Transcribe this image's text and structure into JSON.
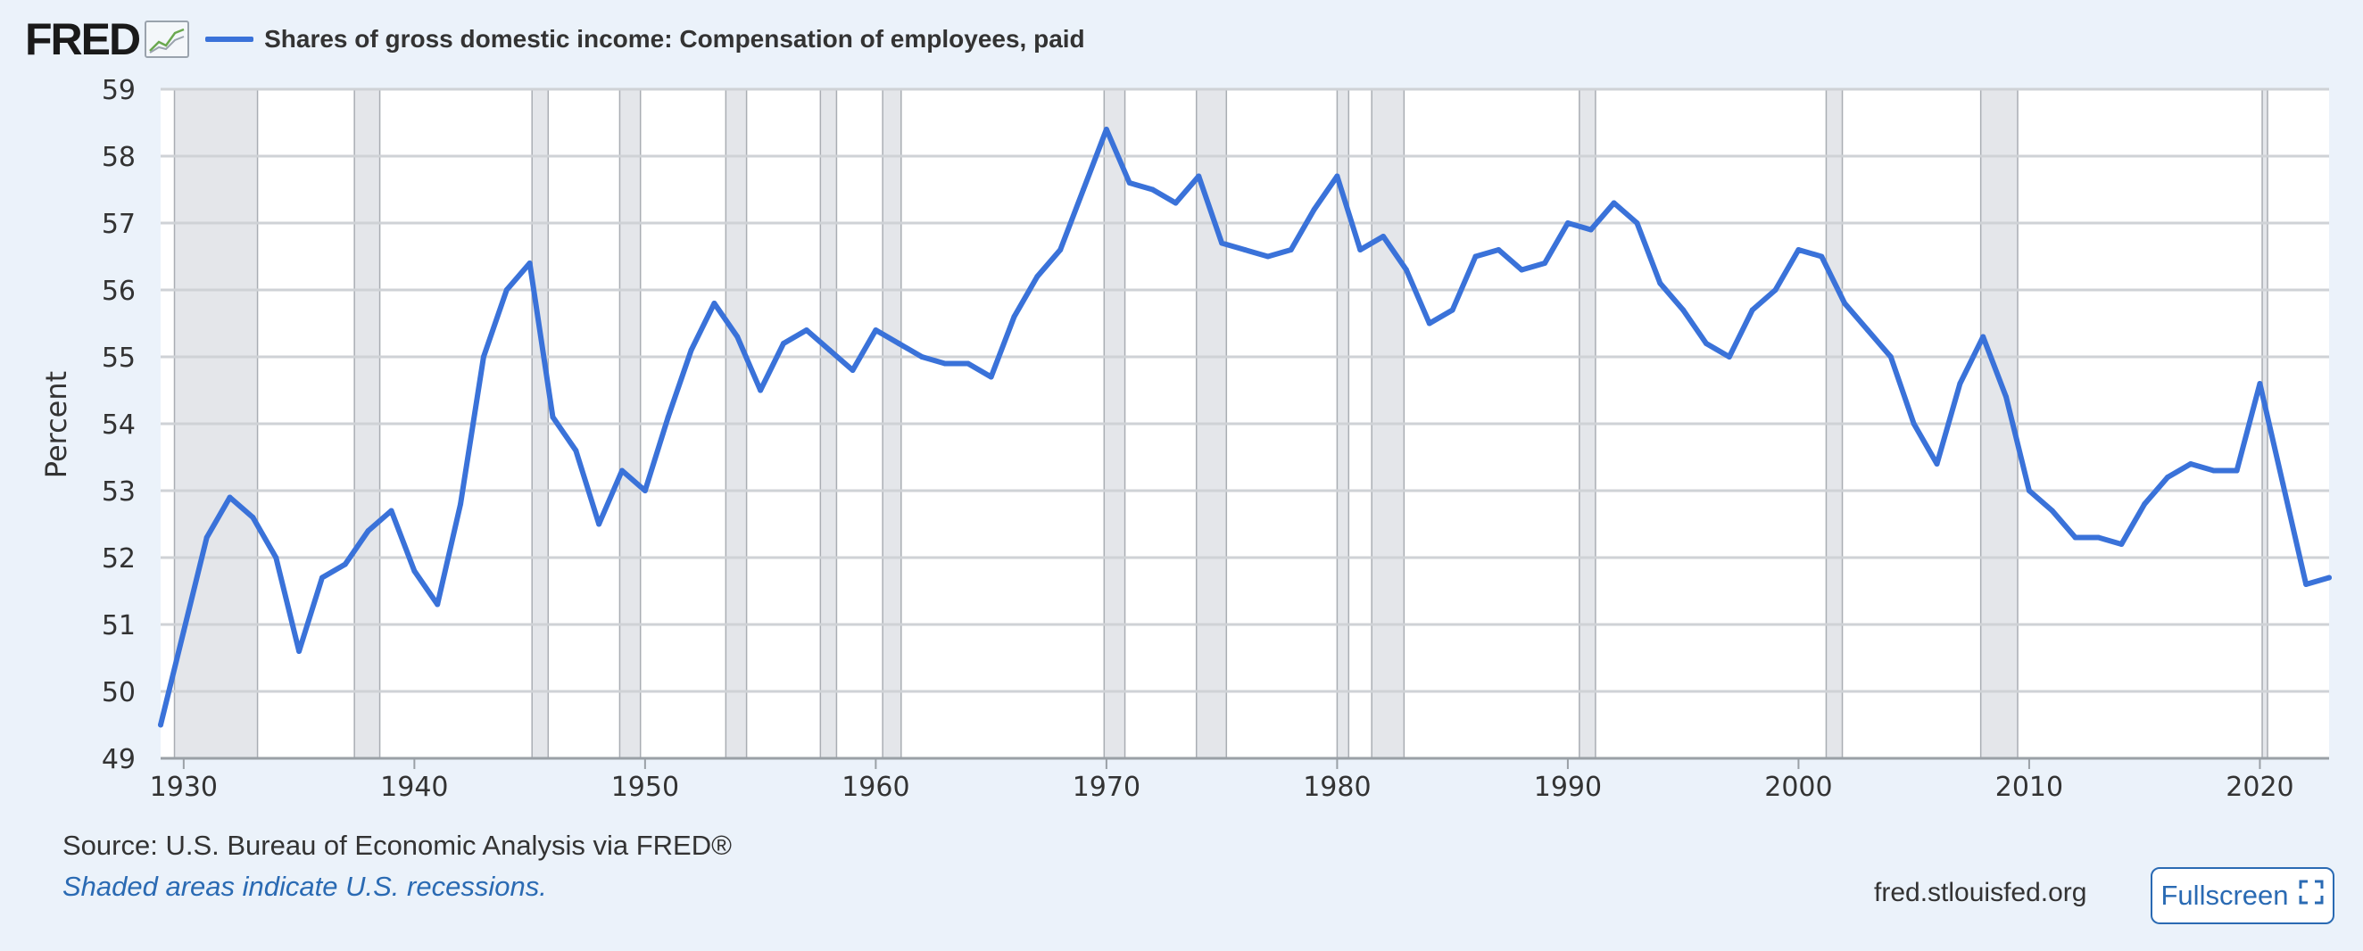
{
  "header": {
    "logo": "FRED",
    "series_title": "Shares of gross domestic income: Compensation of employees, paid"
  },
  "footer": {
    "source": "Source: U.S. Bureau of Economic Analysis via FRED®",
    "note": "Shaded areas indicate U.S. recessions.",
    "site": "fred.stlouisfed.org",
    "fullscreen_label": "Fullscreen",
    "fullscreen_icon": "expand-icon"
  },
  "colors": {
    "line": "#3a72d9",
    "recession_fill": "#e4e6ea",
    "gridline": "#cfd2d6",
    "background": "#ebf2fa"
  },
  "chart_data": {
    "type": "line",
    "title": "Shares of gross domestic income: Compensation of employees, paid",
    "ylabel": "Percent",
    "xlabel": "",
    "xlim": [
      1929,
      2023
    ],
    "ylim": [
      49,
      59
    ],
    "yticks": [
      49,
      50,
      51,
      52,
      53,
      54,
      55,
      56,
      57,
      58,
      59
    ],
    "xticks": [
      1930,
      1940,
      1950,
      1960,
      1970,
      1980,
      1990,
      2000,
      2010,
      2020
    ],
    "grid": true,
    "recessions": [
      [
        1929.6,
        1933.2
      ],
      [
        1937.4,
        1938.5
      ],
      [
        1945.1,
        1945.8
      ],
      [
        1948.9,
        1949.8
      ],
      [
        1953.5,
        1954.4
      ],
      [
        1957.6,
        1958.3
      ],
      [
        1960.3,
        1961.1
      ],
      [
        1969.9,
        1970.8
      ],
      [
        1973.9,
        1975.2
      ],
      [
        1980.0,
        1980.5
      ],
      [
        1981.5,
        1982.9
      ],
      [
        1990.5,
        1991.2
      ],
      [
        2001.2,
        2001.9
      ],
      [
        2007.9,
        2009.5
      ],
      [
        2020.1,
        2020.3
      ]
    ],
    "x": [
      1929,
      1930,
      1931,
      1932,
      1933,
      1934,
      1935,
      1936,
      1937,
      1938,
      1939,
      1940,
      1941,
      1942,
      1943,
      1944,
      1945,
      1946,
      1947,
      1948,
      1949,
      1950,
      1951,
      1952,
      1953,
      1954,
      1955,
      1956,
      1957,
      1958,
      1959,
      1960,
      1961,
      1962,
      1963,
      1964,
      1965,
      1966,
      1967,
      1968,
      1969,
      1970,
      1971,
      1972,
      1973,
      1974,
      1975,
      1976,
      1977,
      1978,
      1979,
      1980,
      1981,
      1982,
      1983,
      1984,
      1985,
      1986,
      1987,
      1988,
      1989,
      1990,
      1991,
      1992,
      1993,
      1994,
      1995,
      1996,
      1997,
      1998,
      1999,
      2000,
      2001,
      2002,
      2003,
      2004,
      2005,
      2006,
      2007,
      2008,
      2009,
      2010,
      2011,
      2012,
      2013,
      2014,
      2015,
      2016,
      2017,
      2018,
      2019,
      2020,
      2021,
      2022,
      2023
    ],
    "series": [
      {
        "values": [
          49.5,
          50.9,
          52.3,
          52.9,
          52.6,
          52.0,
          50.6,
          51.7,
          51.9,
          52.4,
          52.7,
          51.8,
          51.3,
          52.8,
          55.0,
          56.0,
          56.4,
          54.1,
          53.6,
          52.5,
          53.3,
          53.0,
          54.1,
          55.1,
          55.8,
          55.3,
          54.5,
          55.2,
          55.4,
          55.1,
          54.8,
          55.4,
          55.2,
          55.0,
          54.9,
          54.9,
          54.7,
          55.6,
          56.2,
          56.6,
          57.5,
          58.4,
          57.6,
          57.5,
          57.3,
          57.7,
          56.7,
          56.6,
          56.5,
          56.6,
          57.2,
          57.7,
          56.6,
          56.8,
          56.3,
          55.5,
          55.7,
          56.5,
          56.6,
          56.3,
          56.4,
          57.0,
          56.9,
          57.3,
          57.0,
          56.1,
          55.7,
          55.2,
          55.0,
          55.7,
          56.0,
          56.6,
          56.5,
          55.8,
          55.4,
          55.0,
          54.0,
          53.4,
          54.6,
          55.3,
          54.4,
          53.0,
          52.7,
          52.3,
          52.3,
          52.2,
          52.8,
          53.2,
          53.4,
          53.3,
          53.3,
          54.6,
          53.1,
          51.6,
          51.7
        ]
      }
    ]
  }
}
